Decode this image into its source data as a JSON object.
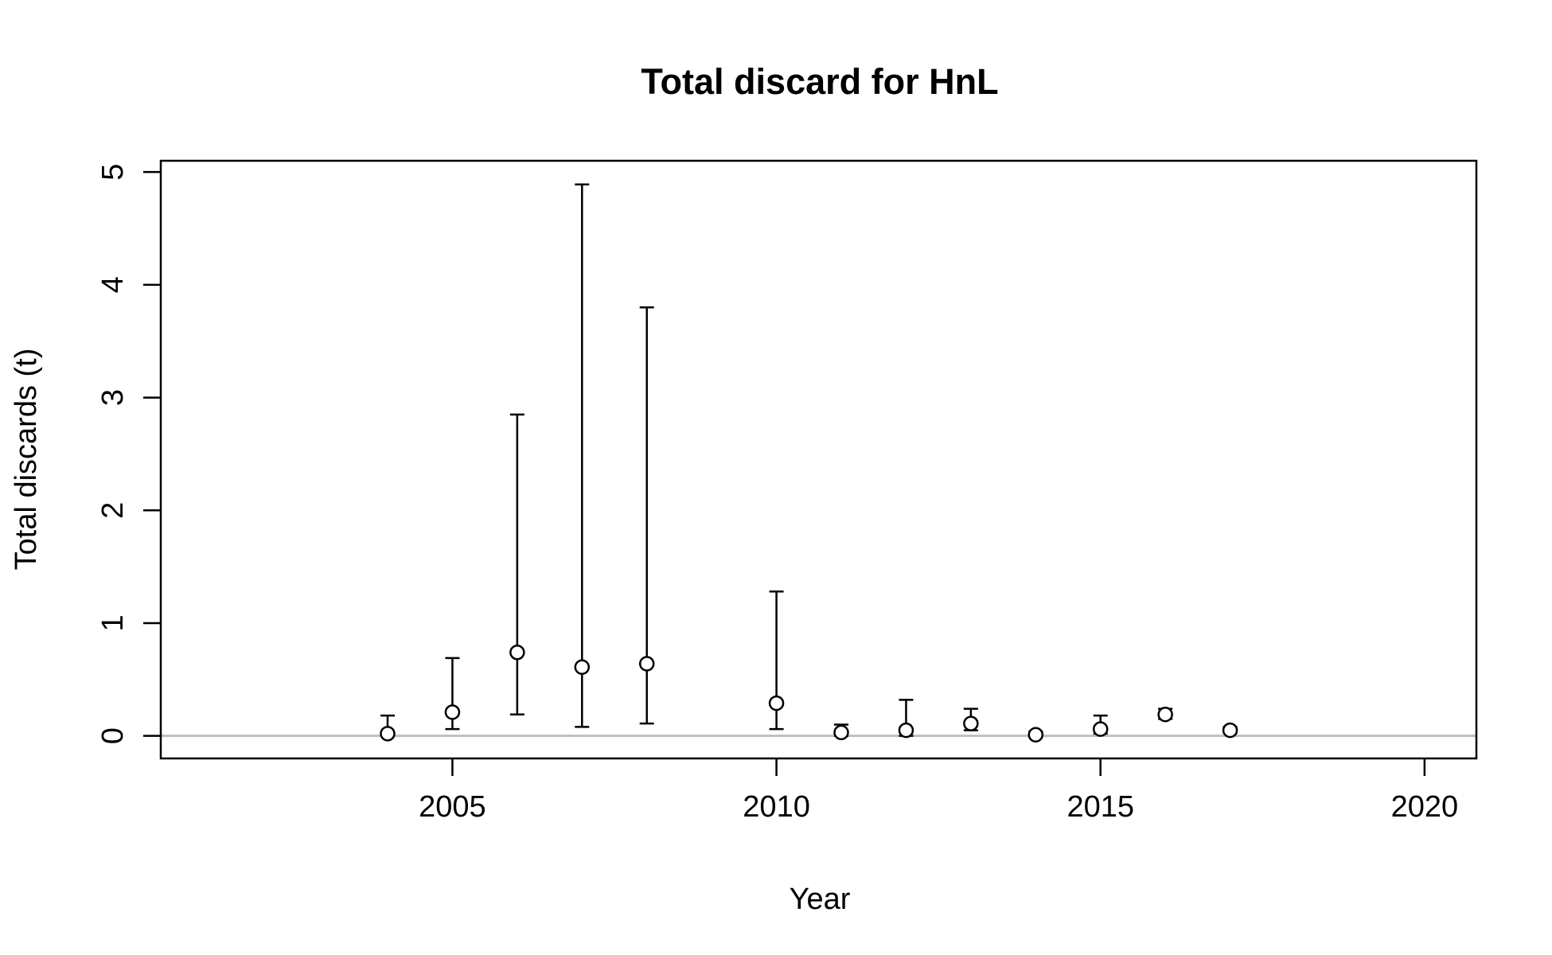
{
  "chart_data": {
    "type": "scatter",
    "title": "Total discard for HnL",
    "xlabel": "Year",
    "ylabel": "Total discards (t)",
    "xlim": [
      2000.5,
      2020.8
    ],
    "ylim": [
      -0.2,
      5.1
    ],
    "x_ticks": [
      2005,
      2010,
      2015,
      2020
    ],
    "y_ticks": [
      0,
      1,
      2,
      3,
      4,
      5
    ],
    "reference_line": {
      "y": 0,
      "color": "#bebebe"
    },
    "grid": false,
    "series": [
      {
        "marker": "open-circle",
        "error_bars": true,
        "points": [
          {
            "x": 2004,
            "y": 0.02,
            "low": 0.0,
            "high": 0.18
          },
          {
            "x": 2005,
            "y": 0.21,
            "low": 0.06,
            "high": 0.69
          },
          {
            "x": 2006,
            "y": 0.74,
            "low": 0.19,
            "high": 2.85
          },
          {
            "x": 2007,
            "y": 0.61,
            "low": 0.08,
            "high": 4.89
          },
          {
            "x": 2008,
            "y": 0.64,
            "low": 0.11,
            "high": 3.8
          },
          {
            "x": 2010,
            "y": 0.29,
            "low": 0.06,
            "high": 1.28
          },
          {
            "x": 2011,
            "y": 0.03,
            "low": 0.0,
            "high": 0.1
          },
          {
            "x": 2012,
            "y": 0.05,
            "low": 0.0,
            "high": 0.32
          },
          {
            "x": 2013,
            "y": 0.11,
            "low": 0.05,
            "high": 0.24
          },
          {
            "x": 2014,
            "y": 0.01,
            "low": 0.0,
            "high": 0.04
          },
          {
            "x": 2015,
            "y": 0.06,
            "low": 0.02,
            "high": 0.18
          },
          {
            "x": 2016,
            "y": 0.19,
            "low": 0.15,
            "high": 0.24
          },
          {
            "x": 2017,
            "y": 0.05,
            "low": 0.03,
            "high": 0.08
          }
        ]
      }
    ]
  }
}
